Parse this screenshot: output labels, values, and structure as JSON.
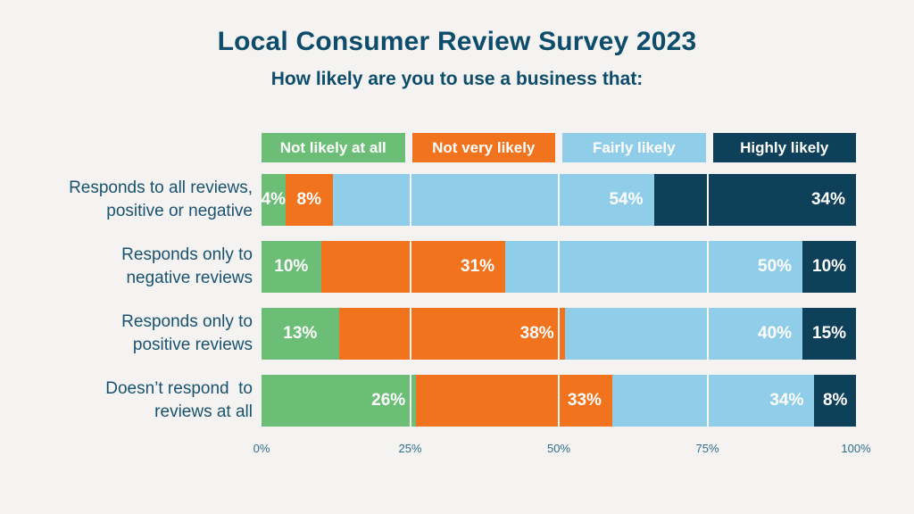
{
  "title": "Local Consumer Review Survey 2023",
  "subtitle": "How likely are you to use a business that:",
  "colors": {
    "background": "#f4f3f1",
    "title_text": "#0d4c6b",
    "row_label_text": "#19526f",
    "axis_text": "#2f6d8c",
    "value_label_text": "#ffffff",
    "gridline": "#f7f6f4"
  },
  "chart_data": {
    "type": "bar",
    "stacked": true,
    "orientation": "horizontal",
    "title": "Local Consumer Review Survey 2023",
    "subtitle": "How likely are you to use a business that:",
    "categories": [
      "Responds to all reviews,\npositive or negative",
      "Responds only to\nnegative reviews",
      "Responds only to\npositive reviews",
      "Doesn’t respond  to\nreviews at all"
    ],
    "series": [
      {
        "name": "Not likely at all",
        "color": "#6cbe77",
        "values": [
          4,
          10,
          13,
          26
        ]
      },
      {
        "name": "Not very likely",
        "color": "#f1731e",
        "values": [
          8,
          31,
          38,
          33
        ]
      },
      {
        "name": "Fairly likely",
        "color": "#8fcde9",
        "values": [
          54,
          50,
          40,
          34
        ]
      },
      {
        "name": "Highly likely",
        "color": "#0e405a",
        "values": [
          34,
          10,
          15,
          8
        ]
      }
    ],
    "value_suffix": "%",
    "xlim": [
      0,
      100
    ],
    "x_ticks": [
      "0%",
      "25%",
      "50%",
      "75%",
      "100%"
    ],
    "gridlines_at": [
      25,
      50,
      75
    ],
    "grid": true,
    "legend_position": "top"
  }
}
